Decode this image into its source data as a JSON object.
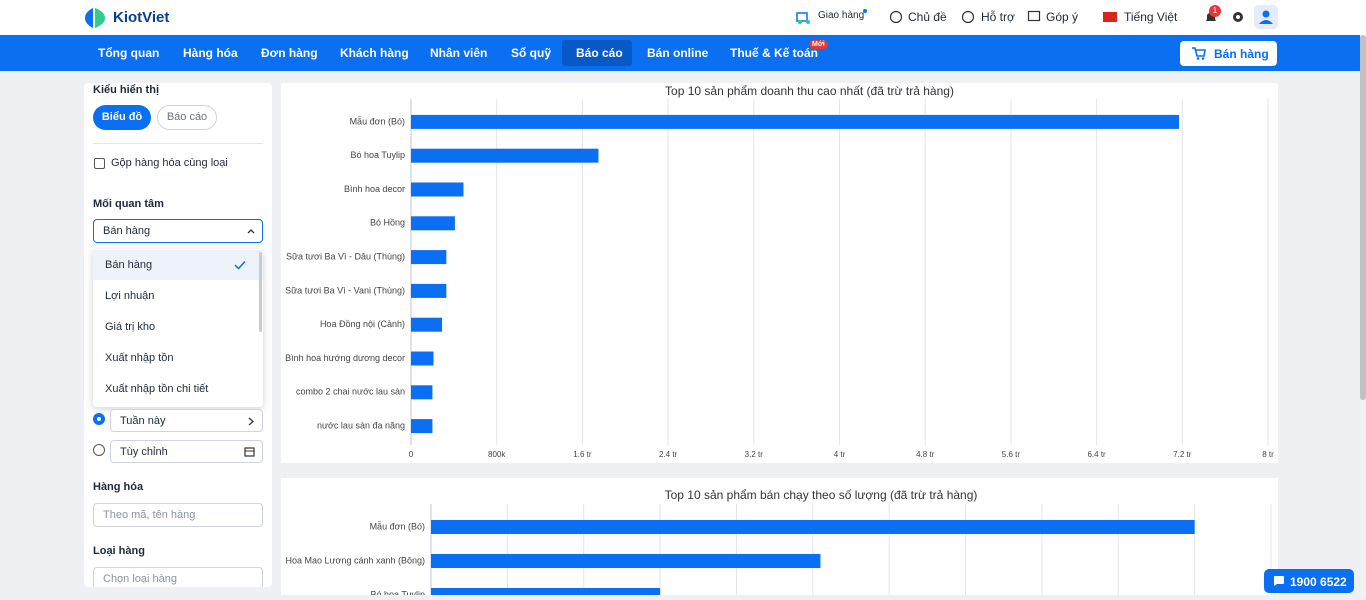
{
  "header": {
    "logo": "KiotViet",
    "delivery": "Giao hàng",
    "theme": "Chủ đề",
    "support": "Hỗ trợ",
    "feedback": "Góp ý",
    "language": "Tiếng Việt",
    "notifications": "1"
  },
  "nav": {
    "items": [
      "Tổng quan",
      "Hàng hóa",
      "Đơn hàng",
      "Khách hàng",
      "Nhân viên",
      "Sổ quỹ",
      "Báo cáo",
      "Bán online",
      "Thuế & Kế toán"
    ],
    "new_badge": "Mới",
    "sell_button": "Bán hàng"
  },
  "sidebar": {
    "display_label": "Kiểu hiển thị",
    "display_options": [
      "Biểu đồ",
      "Báo cáo"
    ],
    "group_checkbox": "Gộp hàng hóa cùng loại",
    "concern_label": "Mối quan tâm",
    "concern_selected": "Bán hàng",
    "concern_options": [
      "Bán hàng",
      "Lợi nhuận",
      "Giá trị kho",
      "Xuất nhập tồn",
      "Xuất nhập tồn chi tiết"
    ],
    "time_options": [
      "Tuần này",
      "Tùy chỉnh"
    ],
    "goods_label": "Hàng hóa",
    "goods_placeholder": "Theo mã, tên hàng",
    "type_label": "Loại hàng",
    "type_placeholder": "Chọn loại hàng"
  },
  "hotline": "1900 6522",
  "chart_data": [
    {
      "type": "bar",
      "orientation": "horizontal",
      "title": "Top 10 sản phẩm doanh thu cao nhất (đã trừ trả hàng)",
      "color": "#0b6ff3",
      "grid": true,
      "categories": [
        "Mẫu đơn (Bó)",
        "Bó hoa Tuylip",
        "Bình hoa decor",
        "Bó Hồng",
        "Sữa tươi Ba Vì - Dâu (Thùng)",
        "Sữa tươi Ba Vì - Vani (Thùng)",
        "Hoa Đồng nội (Cảnh)",
        "Bình hoa hướng dương decor",
        "combo 2 chai nước lau sàn",
        "nước lau sàn đa năng"
      ],
      "values": [
        7170000,
        1750000,
        490000,
        410000,
        330000,
        330000,
        290000,
        210000,
        200000,
        200000
      ],
      "xlim": [
        0,
        8000000
      ],
      "xticks": [
        0,
        {
          "value": 800000,
          "label": "800k"
        },
        {
          "value": 1600000,
          "label": "1.6 tr"
        },
        {
          "value": 2400000,
          "label": "2.4 tr"
        },
        {
          "value": 3200000,
          "label": "3.2 tr"
        },
        {
          "value": 4000000,
          "label": "4 tr"
        },
        {
          "value": 4800000,
          "label": "4.8 tr"
        },
        {
          "value": 5600000,
          "label": "5.6 tr"
        },
        {
          "value": 6400000,
          "label": "6.4 tr"
        },
        {
          "value": 7200000,
          "label": "7.2 tr"
        },
        {
          "value": 8000000,
          "label": "8 tr"
        }
      ]
    },
    {
      "type": "bar",
      "orientation": "horizontal",
      "title": "Top 10 sản phẩm bán chạy theo số lượng (đã trừ trả hàng)",
      "color": "#0b6ff3",
      "grid": true,
      "categories": [
        "Mẫu đơn (Bó)",
        "Hoa Mao Lương cánh xanh (Bông)",
        "Bó hoa Tuylip"
      ],
      "values": [
        10,
        5.1,
        3
      ],
      "xlim": [
        0,
        11
      ],
      "xticks": [
        0,
        1,
        2,
        3,
        4,
        5,
        6,
        7,
        8,
        9,
        10,
        11
      ]
    }
  ]
}
